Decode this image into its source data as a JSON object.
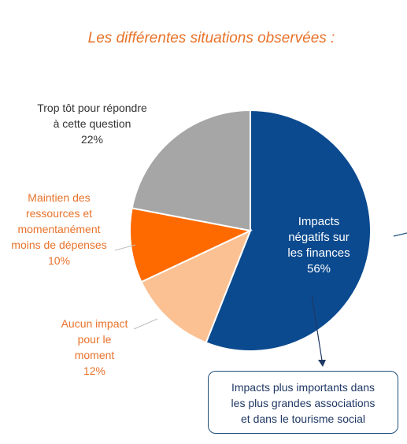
{
  "title": "Les différentes situations observées :",
  "chart_data": {
    "type": "pie",
    "slices": [
      {
        "key": "negatif",
        "label_lines": [
          "Impacts",
          "négatifs sur",
          "les finances"
        ],
        "value_text": "56%",
        "value": 56,
        "color": "#0b4a8f"
      },
      {
        "key": "aucun",
        "label_lines": [
          "Aucun impact",
          "pour le",
          "moment"
        ],
        "value_text": "12%",
        "value": 12,
        "color": "#fbc193"
      },
      {
        "key": "maintien",
        "label_lines": [
          "Maintien des",
          "ressources et",
          "momentanément",
          "moins de dépenses"
        ],
        "value_text": "10%",
        "value": 10,
        "color": "#ff6a00"
      },
      {
        "key": "tropTot",
        "label_lines": [
          "Trop tôt pour répondre",
          "à cette question"
        ],
        "value_text": "22%",
        "value": 22,
        "color": "#a6a6a6"
      }
    ]
  },
  "callout": {
    "lines": [
      "Impacts plus importants dans",
      "les plus grandes associations",
      "et dans le tourisme social"
    ]
  }
}
